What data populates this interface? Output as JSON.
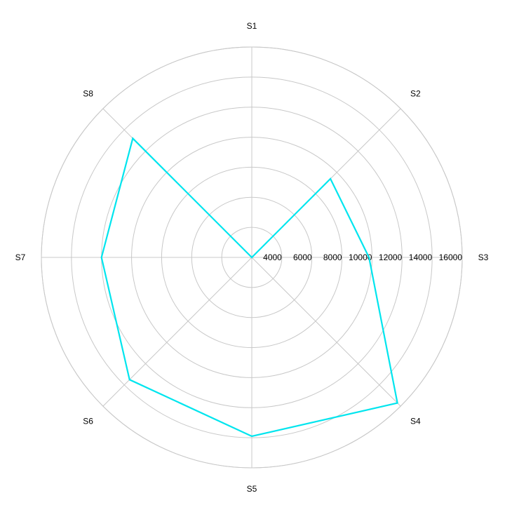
{
  "chart_data": {
    "type": "radar",
    "categories": [
      "S1",
      "S2",
      "S3",
      "S4",
      "S5",
      "S6",
      "S7",
      "S8"
    ],
    "radial_ticks": [
      "4000",
      "6000",
      "8000",
      "10000",
      "12000",
      "14000",
      "16000"
    ],
    "rlim": [
      2000,
      16000
    ],
    "series": [
      {
        "values": [
          2000,
          9400,
          9800,
          15700,
          13900,
          13500,
          12000,
          13200
        ],
        "color": "#00e5ee"
      }
    ],
    "grid": true,
    "legend": "none"
  }
}
